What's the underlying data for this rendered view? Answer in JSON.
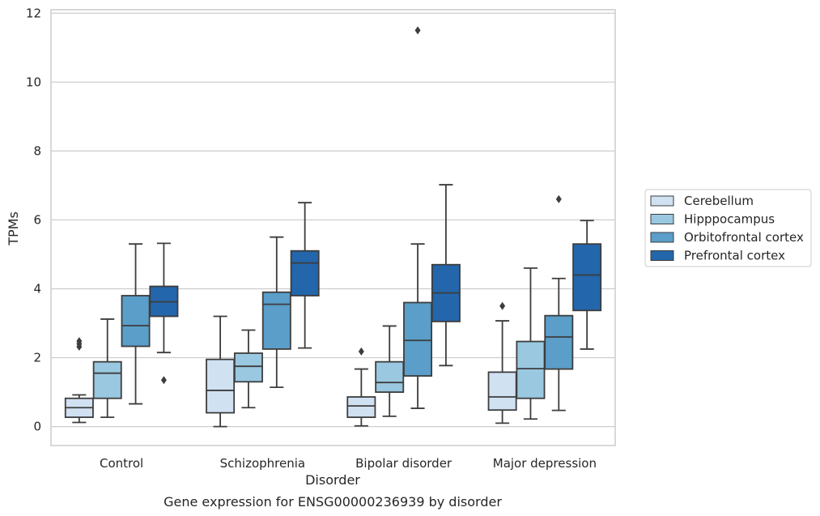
{
  "chart_data": {
    "type": "box",
    "title": "",
    "caption": "Gene expression for ENSG00000236939 by disorder",
    "xlabel": "Disorder",
    "ylabel": "TPMs",
    "ylim": [
      -0.55,
      12.1
    ],
    "yticks": [
      "0",
      "2",
      "4",
      "6",
      "8",
      "10",
      "12"
    ],
    "grid": true,
    "legend_position": "right",
    "categories": [
      "Control",
      "Schizophrenia",
      "Bipolar disorder",
      "Major depression"
    ],
    "series": [
      {
        "name": "Cerebellum",
        "color": "#d0e1f2",
        "boxes": [
          {
            "whisker_low": 0.12,
            "q1": 0.27,
            "median": 0.55,
            "q3": 0.82,
            "whisker_high": 0.92,
            "outliers": [
              2.32,
              2.4,
              2.48
            ]
          },
          {
            "whisker_low": 0.0,
            "q1": 0.4,
            "median": 1.05,
            "q3": 1.95,
            "whisker_high": 3.2,
            "outliers": []
          },
          {
            "whisker_low": 0.02,
            "q1": 0.27,
            "median": 0.6,
            "q3": 0.86,
            "whisker_high": 1.67,
            "outliers": [
              2.18
            ]
          },
          {
            "whisker_low": 0.1,
            "q1": 0.48,
            "median": 0.86,
            "q3": 1.58,
            "whisker_high": 3.07,
            "outliers": [
              3.5
            ]
          }
        ]
      },
      {
        "name": "Hipppocampus",
        "color": "#9ac8e0",
        "boxes": [
          {
            "whisker_low": 0.27,
            "q1": 0.82,
            "median": 1.55,
            "q3": 1.88,
            "whisker_high": 3.12,
            "outliers": []
          },
          {
            "whisker_low": 0.55,
            "q1": 1.3,
            "median": 1.75,
            "q3": 2.13,
            "whisker_high": 2.8,
            "outliers": []
          },
          {
            "whisker_low": 0.3,
            "q1": 1.0,
            "median": 1.28,
            "q3": 1.88,
            "whisker_high": 2.92,
            "outliers": []
          },
          {
            "whisker_low": 0.22,
            "q1": 0.82,
            "median": 1.68,
            "q3": 2.47,
            "whisker_high": 4.6,
            "outliers": []
          }
        ]
      },
      {
        "name": "Orbitofrontal cortex",
        "color": "#5a9ec9",
        "boxes": [
          {
            "whisker_low": 0.66,
            "q1": 2.33,
            "median": 2.93,
            "q3": 3.8,
            "whisker_high": 5.3,
            "outliers": []
          },
          {
            "whisker_low": 1.14,
            "q1": 2.25,
            "median": 3.55,
            "q3": 3.9,
            "whisker_high": 5.5,
            "outliers": []
          },
          {
            "whisker_low": 0.53,
            "q1": 1.47,
            "median": 2.5,
            "q3": 3.6,
            "whisker_high": 5.3,
            "outliers": [
              11.5
            ]
          },
          {
            "whisker_low": 0.47,
            "q1": 1.67,
            "median": 2.6,
            "q3": 3.22,
            "whisker_high": 4.3,
            "outliers": [
              6.6
            ]
          }
        ]
      },
      {
        "name": "Prefrontal cortex",
        "color": "#2366ab",
        "boxes": [
          {
            "whisker_low": 2.15,
            "q1": 3.2,
            "median": 3.62,
            "q3": 4.07,
            "whisker_high": 5.32,
            "outliers": [
              1.35
            ]
          },
          {
            "whisker_low": 2.28,
            "q1": 3.8,
            "median": 4.75,
            "q3": 5.1,
            "whisker_high": 6.5,
            "outliers": []
          },
          {
            "whisker_low": 1.77,
            "q1": 3.05,
            "median": 3.88,
            "q3": 4.7,
            "whisker_high": 7.02,
            "outliers": []
          },
          {
            "whisker_low": 2.25,
            "q1": 3.37,
            "median": 4.4,
            "q3": 5.3,
            "whisker_high": 5.98,
            "outliers": []
          }
        ]
      }
    ]
  }
}
